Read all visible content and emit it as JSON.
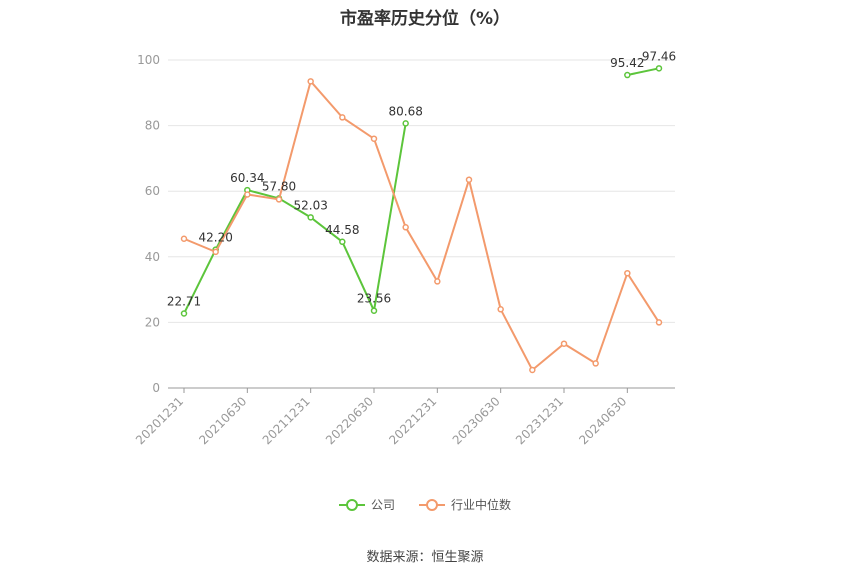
{
  "title": "市盈率历史分位（%）",
  "source": "数据来源：恒生聚源",
  "colors": {
    "company": "#5cc53b",
    "industry": "#f39a6c",
    "grid": "#e6e6e6",
    "axis": "#999999",
    "tick": "#999999"
  },
  "chart_data": {
    "type": "line",
    "title": "市盈率历史分位（%）",
    "ylim": [
      0,
      100
    ],
    "yticks": [
      0,
      20,
      40,
      60,
      80,
      100
    ],
    "x": [
      "20201231",
      "20210331",
      "20210630",
      "20210930",
      "20211231",
      "20220331",
      "20220630",
      "20220930",
      "20221231",
      "20230331",
      "20230630",
      "20230930",
      "20231231",
      "20240331",
      "20240630",
      "20240930"
    ],
    "xtick_labels": [
      "20201231",
      "20210630",
      "20211231",
      "20220630",
      "20221231",
      "20230630",
      "20231231",
      "20240630"
    ],
    "grid": true,
    "legend_position": "bottom",
    "series": [
      {
        "name": "公司",
        "color": "#5cc53b",
        "values": [
          22.71,
          42.2,
          60.34,
          57.8,
          52.03,
          44.58,
          23.56,
          80.68,
          null,
          null,
          null,
          null,
          null,
          null,
          95.42,
          97.46
        ],
        "show_labels": true
      },
      {
        "name": "行业中位数",
        "color": "#f39a6c",
        "values": [
          45.5,
          41.5,
          59.0,
          57.5,
          93.5,
          82.5,
          76.0,
          49.0,
          32.5,
          63.5,
          24.0,
          5.5,
          13.5,
          7.5,
          35.0,
          20.0
        ],
        "show_labels": false
      }
    ]
  }
}
